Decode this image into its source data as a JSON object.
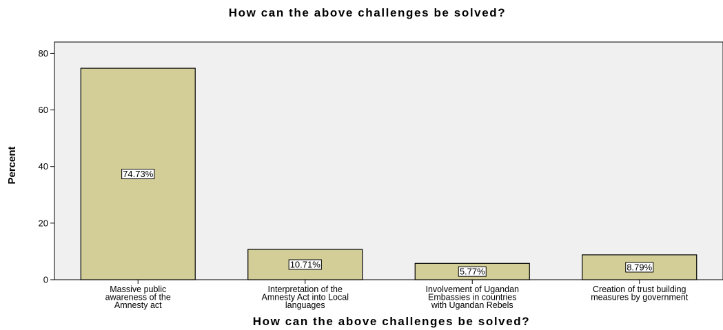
{
  "chart_data": {
    "type": "bar",
    "title": "How can the above challenges be solved?",
    "xlabel": "How can the above challenges be solved?",
    "ylabel": "Percent",
    "ylim": [
      0,
      84
    ],
    "yticks": [
      0,
      20,
      40,
      60,
      80
    ],
    "grid": false,
    "legend": "none",
    "categories": [
      [
        "Massive public",
        "awareness of the",
        "Amnesty act"
      ],
      [
        "Interpretation of the",
        "Amnesty Act into Local",
        "languages"
      ],
      [
        "Involvement of Ugandan",
        "Embassies in countries",
        "with Ugandan Rebels"
      ],
      [
        "Creation of trust building",
        "measures by government"
      ]
    ],
    "values": [
      74.73,
      10.71,
      5.77,
      8.79
    ],
    "data_labels": [
      "74.73%",
      "10.71%",
      "5.77%",
      "8.79%"
    ],
    "colors": {
      "plot_bg": "#f0f0f0",
      "bar_fill": "#d3ce97",
      "bar_stroke": "#000000"
    }
  }
}
